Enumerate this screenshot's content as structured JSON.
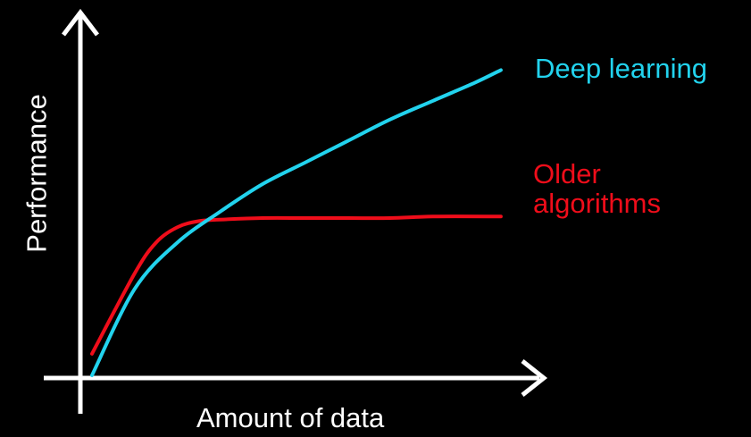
{
  "chart_data": {
    "type": "line",
    "title": "",
    "xlabel": "Amount of data",
    "ylabel": "Performance",
    "xlim": [
      0,
      100
    ],
    "ylim": [
      0,
      100
    ],
    "grid": false,
    "legend": "direct labels at right end of each line",
    "axis_color": "#ffffff",
    "background": "#000000",
    "series": [
      {
        "name": "Deep learning",
        "color": "#22d3ee",
        "label_lines": [
          "Deep learning"
        ],
        "x": [
          0,
          10,
          20,
          30,
          40,
          50,
          60,
          70,
          80,
          90,
          96
        ],
        "y": [
          0,
          28,
          43,
          53,
          62,
          69,
          76,
          83,
          89,
          95,
          99
        ]
      },
      {
        "name": "Older algorithms",
        "color": "#ef0d1a",
        "label_lines": [
          "Older",
          "algorithms"
        ],
        "x": [
          0,
          10,
          15,
          20,
          25,
          30,
          40,
          50,
          60,
          70,
          80,
          96
        ],
        "y": [
          7,
          33,
          43,
          48,
          50,
          50.5,
          51,
          51,
          51,
          51,
          51.5,
          51.5
        ]
      }
    ]
  }
}
